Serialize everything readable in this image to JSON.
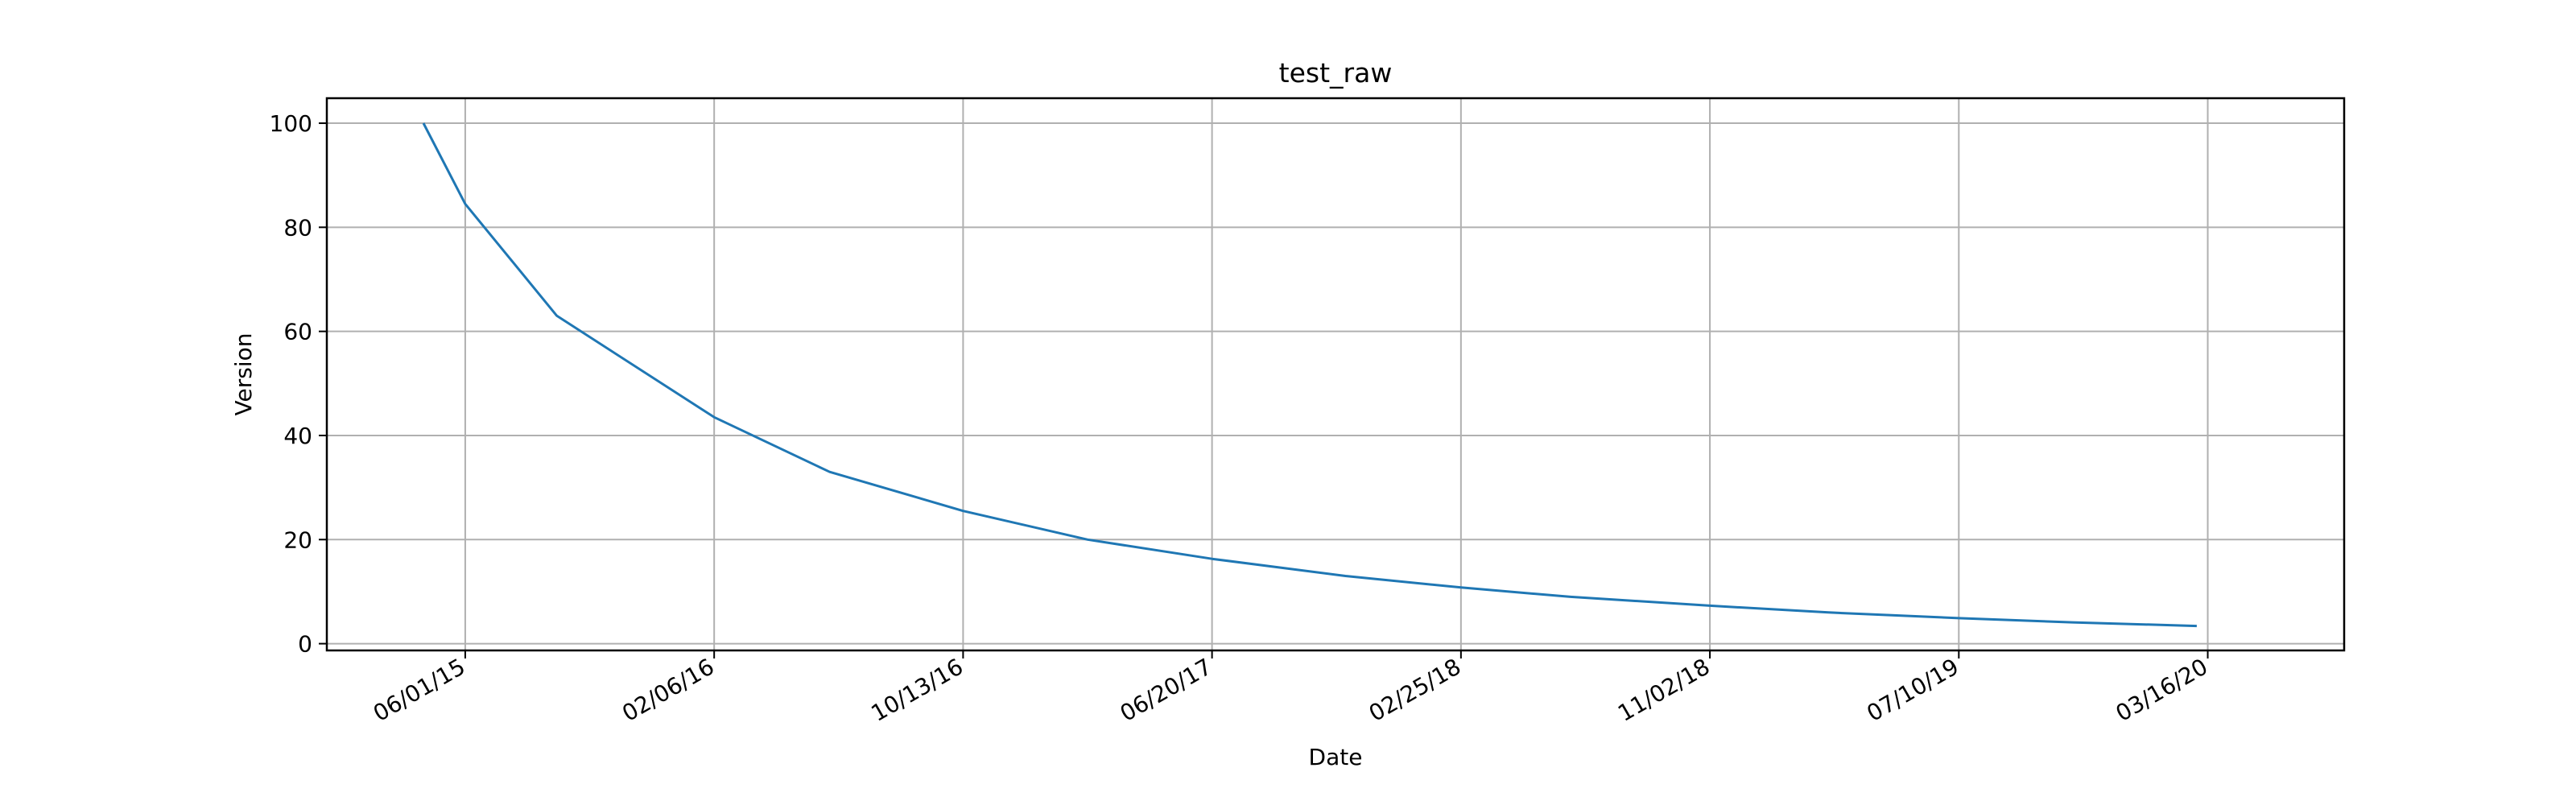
{
  "chart_data": {
    "type": "line",
    "title": "test_raw",
    "xlabel": "Date",
    "ylabel": "Version",
    "x_tick_labels": [
      "06/01/15",
      "02/06/16",
      "10/13/16",
      "06/20/17",
      "02/25/18",
      "11/02/18",
      "07/10/19",
      "03/16/20"
    ],
    "x_tick_dates": [
      "2015-06-01",
      "2016-02-06",
      "2016-10-13",
      "2017-06-20",
      "2018-02-25",
      "2018-11-02",
      "2019-07-10",
      "2020-03-16"
    ],
    "xlim": [
      "2015-01-13",
      "2020-07-31"
    ],
    "y_ticks": [
      0,
      20,
      40,
      60,
      80,
      100
    ],
    "ylim": [
      -1.3,
      104.8
    ],
    "grid": true,
    "series": [
      {
        "color": "#1f77b4",
        "x": [
          "2015-04-20",
          "2015-06-01",
          "2015-09-01",
          "2016-02-06",
          "2016-06-01",
          "2016-10-13",
          "2017-02-15",
          "2017-06-20",
          "2017-11-01",
          "2018-02-25",
          "2018-06-15",
          "2018-11-02",
          "2019-03-01",
          "2019-07-10",
          "2019-11-01",
          "2020-03-05"
        ],
        "y": [
          100,
          84.5,
          63,
          43.5,
          33,
          25.5,
          20,
          16.3,
          13,
          10.8,
          9,
          7.3,
          6,
          4.9,
          4.1,
          3.4
        ]
      }
    ]
  }
}
